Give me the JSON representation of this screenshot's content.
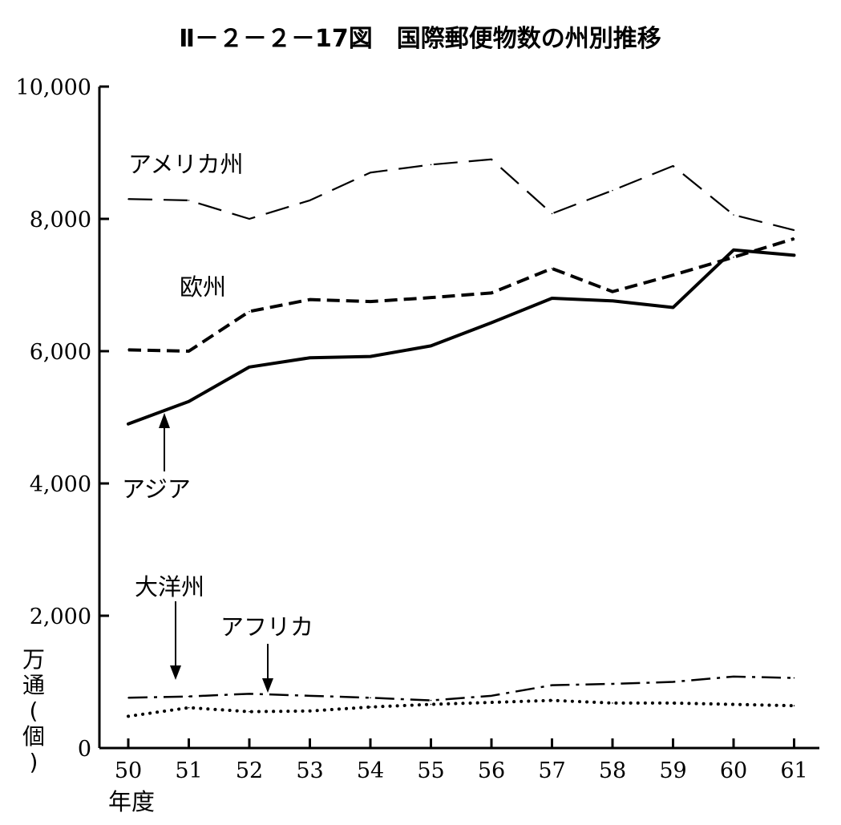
{
  "chart_data": {
    "type": "line",
    "title": "Ⅱ－２－２－17図　国際郵便物数の州別推移",
    "xlabel": "年度",
    "ylabel": "万通(個)",
    "categories": [
      "50",
      "51",
      "52",
      "53",
      "54",
      "55",
      "56",
      "57",
      "58",
      "59",
      "60",
      "61"
    ],
    "yticks": [
      "0",
      "2,000",
      "4,000",
      "6,000",
      "8,000",
      "10,000"
    ],
    "ylim": [
      0,
      10000
    ],
    "grid": false,
    "series": [
      {
        "name": "アメリカ州",
        "style": "long-dash",
        "values": [
          8300,
          8280,
          8000,
          8280,
          8700,
          8820,
          8900,
          8080,
          8430,
          8800,
          8060,
          7830
        ]
      },
      {
        "name": "欧州",
        "style": "short-dash-bold",
        "values": [
          6020,
          6000,
          6600,
          6780,
          6750,
          6810,
          6880,
          7250,
          6900,
          7150,
          7420,
          7700
        ]
      },
      {
        "name": "アジア",
        "style": "solid-bold",
        "values": [
          4900,
          5240,
          5760,
          5900,
          5920,
          6080,
          6430,
          6800,
          6760,
          6660,
          7530,
          7450
        ]
      },
      {
        "name": "大洋州",
        "style": "dash-dot",
        "values": [
          760,
          780,
          820,
          790,
          760,
          720,
          790,
          950,
          970,
          1000,
          1080,
          1060
        ]
      },
      {
        "name": "アフリカ",
        "style": "dotted",
        "values": [
          480,
          610,
          550,
          560,
          620,
          660,
          690,
          720,
          680,
          680,
          660,
          640
        ]
      }
    ]
  }
}
